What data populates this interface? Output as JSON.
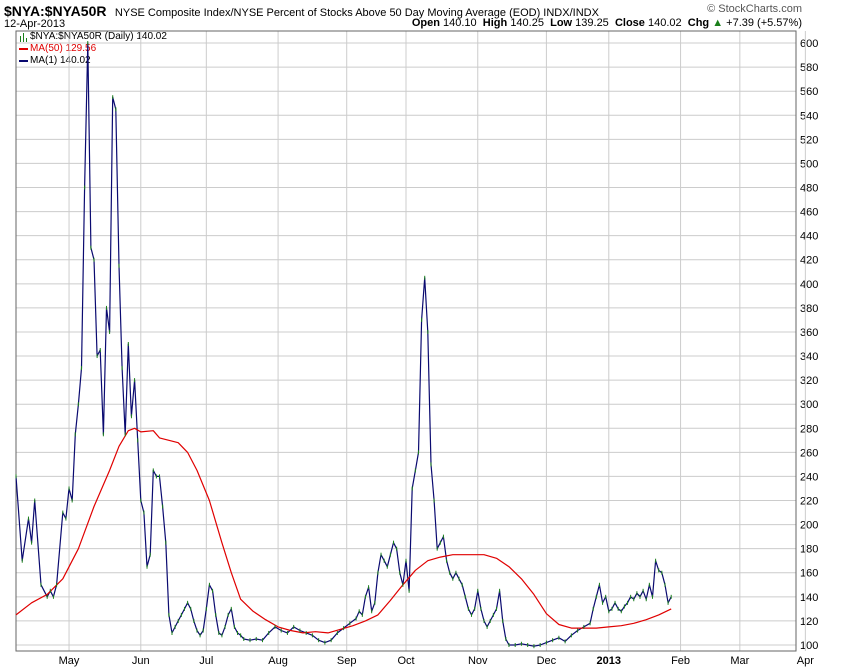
{
  "header": {
    "symbol": "$NYA:$NYA50R",
    "description": "NYSE Composite Index/NYSE Percent of Stocks Above 50 Day Moving Average (EOD)  INDX/INDX",
    "brand": "© StockCharts.com",
    "date": "12-Apr-2013",
    "open_label": "Open",
    "open": "140.10",
    "high_label": "High",
    "high": "140.25",
    "low_label": "Low",
    "low": "139.25",
    "close_label": "Close",
    "close": "140.02",
    "chg_label": "Chg",
    "chg": "+7.39 (+5.57%)",
    "chg_icon": "up-triangle-icon"
  },
  "legend": [
    {
      "label": "$NYA:$NYA50R (Daily) 140.02",
      "color": "#1a7f1a",
      "icon": "ohlc-bars-icon"
    },
    {
      "label": "MA(50) 129.56",
      "color": "#e00000",
      "icon": "line-icon"
    },
    {
      "label": "MA(1) 140.02",
      "color": "#0a0a70",
      "icon": "line-icon"
    }
  ],
  "colors": {
    "price": "#0a0a70",
    "ma50": "#e00000",
    "grid": "#cccccc",
    "frame": "#666666",
    "bar": "#1a7f1a"
  },
  "chart_data": {
    "type": "line",
    "ylim": [
      95,
      610
    ],
    "y_ticks": [
      100,
      120,
      140,
      160,
      180,
      200,
      220,
      240,
      260,
      280,
      300,
      320,
      340,
      360,
      380,
      400,
      420,
      440,
      460,
      480,
      500,
      520,
      540,
      560,
      580,
      600
    ],
    "x_range": [
      0,
      250
    ],
    "x_ticks": [
      {
        "label": "May",
        "pos": 17
      },
      {
        "label": "Jun",
        "pos": 40
      },
      {
        "label": "Jul",
        "pos": 61
      },
      {
        "label": "Aug",
        "pos": 84
      },
      {
        "label": "Sep",
        "pos": 106
      },
      {
        "label": "Oct",
        "pos": 125
      },
      {
        "label": "Nov",
        "pos": 148
      },
      {
        "label": "Dec",
        "pos": 170
      },
      {
        "label": "2013",
        "pos": 190
      },
      {
        "label": "Feb",
        "pos": 213
      },
      {
        "label": "Mar",
        "pos": 232
      },
      {
        "label": "Apr",
        "pos": 253
      }
    ],
    "series": [
      {
        "name": "MA(1) 140.02",
        "values": [
          [
            0,
            240
          ],
          [
            2,
            170
          ],
          [
            4,
            205
          ],
          [
            5,
            185
          ],
          [
            6,
            220
          ],
          [
            8,
            150
          ],
          [
            10,
            140
          ],
          [
            11,
            145
          ],
          [
            12,
            140
          ],
          [
            13,
            150
          ],
          [
            15,
            210
          ],
          [
            16,
            205
          ],
          [
            17,
            230
          ],
          [
            18,
            220
          ],
          [
            19,
            275
          ],
          [
            20,
            300
          ],
          [
            21,
            330
          ],
          [
            22,
            480
          ],
          [
            23,
            600
          ],
          [
            24,
            430
          ],
          [
            25,
            420
          ],
          [
            26,
            340
          ],
          [
            27,
            345
          ],
          [
            28,
            275
          ],
          [
            29,
            380
          ],
          [
            30,
            360
          ],
          [
            31,
            555
          ],
          [
            32,
            545
          ],
          [
            33,
            415
          ],
          [
            34,
            330
          ],
          [
            35,
            275
          ],
          [
            36,
            350
          ],
          [
            37,
            290
          ],
          [
            38,
            320
          ],
          [
            39,
            270
          ],
          [
            40,
            220
          ],
          [
            41,
            210
          ],
          [
            42,
            165
          ],
          [
            43,
            175
          ],
          [
            44,
            245
          ],
          [
            45,
            240
          ],
          [
            46,
            240
          ],
          [
            47,
            215
          ],
          [
            48,
            185
          ],
          [
            49,
            125
          ],
          [
            50,
            110
          ],
          [
            51,
            115
          ],
          [
            52,
            120
          ],
          [
            53,
            125
          ],
          [
            54,
            130
          ],
          [
            55,
            135
          ],
          [
            56,
            130
          ],
          [
            57,
            120
          ],
          [
            58,
            112
          ],
          [
            59,
            108
          ],
          [
            60,
            112
          ],
          [
            61,
            130
          ],
          [
            62,
            150
          ],
          [
            63,
            145
          ],
          [
            64,
            125
          ],
          [
            65,
            110
          ],
          [
            66,
            108
          ],
          [
            67,
            115
          ],
          [
            68,
            125
          ],
          [
            69,
            130
          ],
          [
            70,
            115
          ],
          [
            71,
            110
          ],
          [
            72,
            108
          ],
          [
            73,
            105
          ],
          [
            75,
            104
          ],
          [
            77,
            105
          ],
          [
            79,
            104
          ],
          [
            81,
            110
          ],
          [
            83,
            115
          ],
          [
            85,
            112
          ],
          [
            87,
            110
          ],
          [
            89,
            115
          ],
          [
            91,
            112
          ],
          [
            93,
            110
          ],
          [
            95,
            108
          ],
          [
            97,
            104
          ],
          [
            99,
            102
          ],
          [
            101,
            104
          ],
          [
            103,
            110
          ],
          [
            105,
            114
          ],
          [
            107,
            118
          ],
          [
            109,
            122
          ],
          [
            110,
            128
          ],
          [
            111,
            125
          ],
          [
            112,
            140
          ],
          [
            113,
            148
          ],
          [
            114,
            128
          ],
          [
            115,
            135
          ],
          [
            116,
            160
          ],
          [
            117,
            175
          ],
          [
            118,
            170
          ],
          [
            119,
            165
          ],
          [
            120,
            175
          ],
          [
            121,
            185
          ],
          [
            122,
            180
          ],
          [
            123,
            160
          ],
          [
            124,
            150
          ],
          [
            125,
            170
          ],
          [
            126,
            145
          ],
          [
            127,
            230
          ],
          [
            128,
            245
          ],
          [
            129,
            260
          ],
          [
            130,
            370
          ],
          [
            131,
            405
          ],
          [
            132,
            360
          ],
          [
            133,
            250
          ],
          [
            134,
            220
          ],
          [
            135,
            180
          ],
          [
            136,
            185
          ],
          [
            137,
            190
          ],
          [
            138,
            170
          ],
          [
            139,
            160
          ],
          [
            140,
            155
          ],
          [
            141,
            160
          ],
          [
            142,
            155
          ],
          [
            143,
            150
          ],
          [
            144,
            140
          ],
          [
            145,
            130
          ],
          [
            146,
            125
          ],
          [
            147,
            130
          ],
          [
            148,
            145
          ],
          [
            149,
            130
          ],
          [
            150,
            120
          ],
          [
            151,
            115
          ],
          [
            152,
            120
          ],
          [
            153,
            125
          ],
          [
            154,
            130
          ],
          [
            155,
            145
          ],
          [
            156,
            120
          ],
          [
            157,
            105
          ],
          [
            158,
            100
          ],
          [
            160,
            100
          ],
          [
            162,
            101
          ],
          [
            164,
            100
          ],
          [
            166,
            99
          ],
          [
            168,
            100
          ],
          [
            170,
            102
          ],
          [
            172,
            104
          ],
          [
            174,
            106
          ],
          [
            176,
            103
          ],
          [
            178,
            108
          ],
          [
            180,
            112
          ],
          [
            182,
            115
          ],
          [
            184,
            118
          ],
          [
            185,
            130
          ],
          [
            186,
            140
          ],
          [
            187,
            150
          ],
          [
            188,
            135
          ],
          [
            189,
            140
          ],
          [
            190,
            128
          ],
          [
            191,
            130
          ],
          [
            192,
            135
          ],
          [
            193,
            130
          ],
          [
            194,
            128
          ],
          [
            195,
            132
          ],
          [
            196,
            135
          ],
          [
            197,
            140
          ],
          [
            198,
            138
          ],
          [
            199,
            143
          ],
          [
            200,
            140
          ],
          [
            201,
            145
          ],
          [
            202,
            138
          ],
          [
            203,
            150
          ],
          [
            204,
            140
          ],
          [
            205,
            170
          ],
          [
            206,
            162
          ],
          [
            207,
            160
          ],
          [
            208,
            150
          ],
          [
            209,
            135
          ],
          [
            210,
            140
          ]
        ]
      },
      {
        "name": "MA(50) 129.56",
        "values": [
          [
            0,
            125
          ],
          [
            5,
            135
          ],
          [
            10,
            142
          ],
          [
            15,
            155
          ],
          [
            20,
            180
          ],
          [
            25,
            215
          ],
          [
            30,
            245
          ],
          [
            33,
            265
          ],
          [
            36,
            278
          ],
          [
            38,
            280
          ],
          [
            40,
            277
          ],
          [
            44,
            278
          ],
          [
            46,
            272
          ],
          [
            52,
            268
          ],
          [
            55,
            260
          ],
          [
            58,
            245
          ],
          [
            62,
            220
          ],
          [
            66,
            185
          ],
          [
            69,
            160
          ],
          [
            72,
            138
          ],
          [
            76,
            128
          ],
          [
            80,
            121
          ],
          [
            84,
            115
          ],
          [
            88,
            112
          ],
          [
            92,
            110
          ],
          [
            96,
            111
          ],
          [
            100,
            110
          ],
          [
            104,
            113
          ],
          [
            108,
            116
          ],
          [
            112,
            120
          ],
          [
            116,
            125
          ],
          [
            120,
            137
          ],
          [
            124,
            150
          ],
          [
            128,
            162
          ],
          [
            132,
            170
          ],
          [
            136,
            173
          ],
          [
            140,
            175
          ],
          [
            146,
            175
          ],
          [
            150,
            175
          ],
          [
            154,
            172
          ],
          [
            158,
            165
          ],
          [
            162,
            155
          ],
          [
            166,
            142
          ],
          [
            170,
            126
          ],
          [
            174,
            117
          ],
          [
            178,
            114
          ],
          [
            182,
            114
          ],
          [
            186,
            114
          ],
          [
            190,
            115
          ],
          [
            194,
            116
          ],
          [
            198,
            118
          ],
          [
            202,
            121
          ],
          [
            206,
            125
          ],
          [
            210,
            130
          ]
        ]
      }
    ]
  }
}
